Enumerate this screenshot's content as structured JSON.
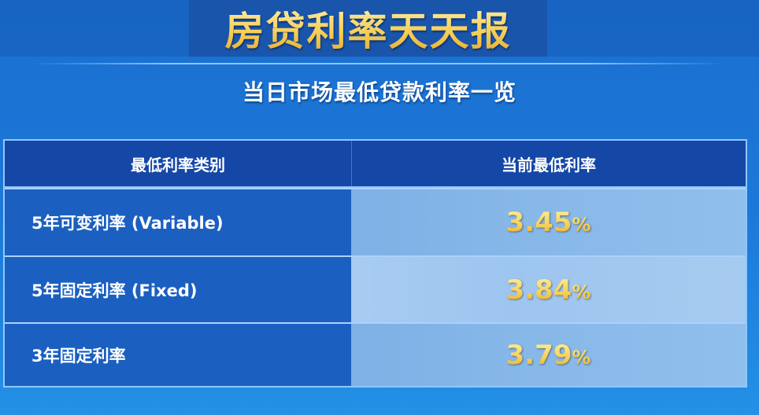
{
  "title": "房贷利率天天报",
  "subtitle": "当日市场最低贷款利率一览",
  "table": {
    "headers": [
      "最低利率类别",
      "当前最低利率"
    ],
    "rows": [
      {
        "category": "5年可变利率 (Variable)",
        "rate": "3.45",
        "unit": "%"
      },
      {
        "category": "5年固定利率 (Fixed)",
        "rate": "3.84",
        "unit": "%"
      },
      {
        "category": "3年固定利率",
        "rate": "3.79",
        "unit": "%"
      }
    ]
  },
  "colors": {
    "title_gold": "#f7d05a",
    "background_blue": "#1c78d8",
    "header_blue": "#1547a6"
  }
}
